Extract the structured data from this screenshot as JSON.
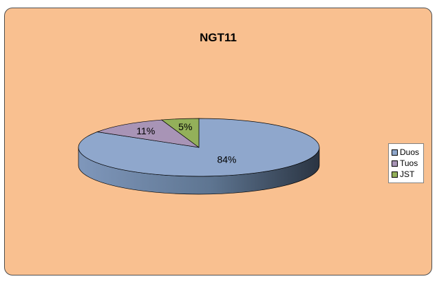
{
  "colors": {
    "background": "#f9c090",
    "Duos": "#8fa7cc",
    "Tuos": "#a894b6",
    "JST": "#93b05a"
  },
  "chart_data": {
    "type": "pie",
    "style": "3d",
    "title": "NGT11",
    "labels": [
      "Duos",
      "Tuos",
      "JST"
    ],
    "values": [
      84,
      11,
      5
    ],
    "data_labels": [
      "84%",
      "11%",
      "5%"
    ],
    "legend_position": "right"
  }
}
